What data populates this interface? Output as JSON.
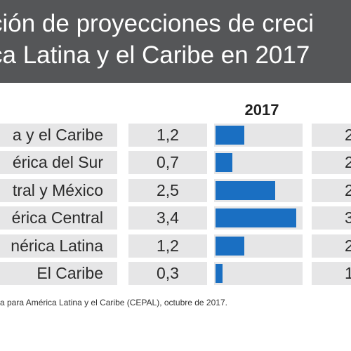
{
  "header": {
    "line1": "ción de proyecciones de creci",
    "line2": "ca Latina y el Caribe en 2017"
  },
  "chart_data": {
    "type": "table",
    "column_header": "2017",
    "xlim": [
      0,
      3.6
    ],
    "rows": [
      {
        "label": "a y el Caribe",
        "value": 1.2,
        "value_text": "1,2",
        "right_text": "2"
      },
      {
        "label": "érica del Sur",
        "value": 0.7,
        "value_text": "0,7",
        "right_text": "2"
      },
      {
        "label": "tral y México",
        "value": 2.5,
        "value_text": "2,5",
        "right_text": "2"
      },
      {
        "label": "érica Central",
        "value": 3.4,
        "value_text": "3,4",
        "right_text": "3"
      },
      {
        "label": "nérica Latina",
        "value": 1.2,
        "value_text": "1,2",
        "right_text": "2"
      },
      {
        "label": "El Caribe",
        "value": 0.3,
        "value_text": "0,3",
        "right_text": "1"
      }
    ]
  },
  "source": "a para América Latina y el Caribe (CEPAL), octubre de 2017.",
  "colors": {
    "header_bg": "#555658",
    "bar": "#1a6fc2",
    "cell_bg": "#e6e6e7"
  }
}
